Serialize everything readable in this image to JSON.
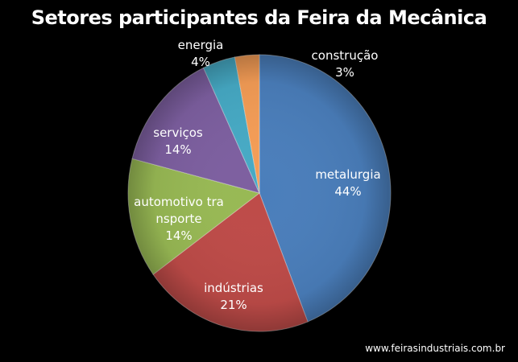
{
  "chart_data": {
    "type": "pie",
    "title": "Setores participantes da Feira da Mecânica",
    "start_clockwise_from_top": true,
    "slices": [
      {
        "label": "metalurgia",
        "label_lines": [
          "metalurgia"
        ],
        "value": 44,
        "display": "44%",
        "color": "#4a7ebb",
        "label_color": "#ffffff"
      },
      {
        "label": "indústrias",
        "label_lines": [
          "indústrias"
        ],
        "value": 21,
        "display": "21%",
        "color": "#be4b48",
        "label_color": "#ffffff"
      },
      {
        "label": "automotivo  transporte",
        "label_lines": [
          "automotivo  tra",
          "nsporte"
        ],
        "value": 14,
        "display": "14%",
        "color": "#98b954",
        "label_color": "#ffffff"
      },
      {
        "label": "serviços",
        "label_lines": [
          "serviços"
        ],
        "value": 14,
        "display": "14%",
        "color": "#7d5fa0",
        "label_color": "#ffffff"
      },
      {
        "label": "energia",
        "label_lines": [
          "energia"
        ],
        "value": 4,
        "display": "4%",
        "color": "#46aac5",
        "label_color": "#ffffff"
      },
      {
        "label": "construção",
        "label_lines": [
          "construção"
        ],
        "value": 3,
        "display": "3%",
        "color": "#f59d56",
        "label_color": "#ffffff"
      }
    ]
  },
  "source": "www.feirasindustriais.com.br"
}
